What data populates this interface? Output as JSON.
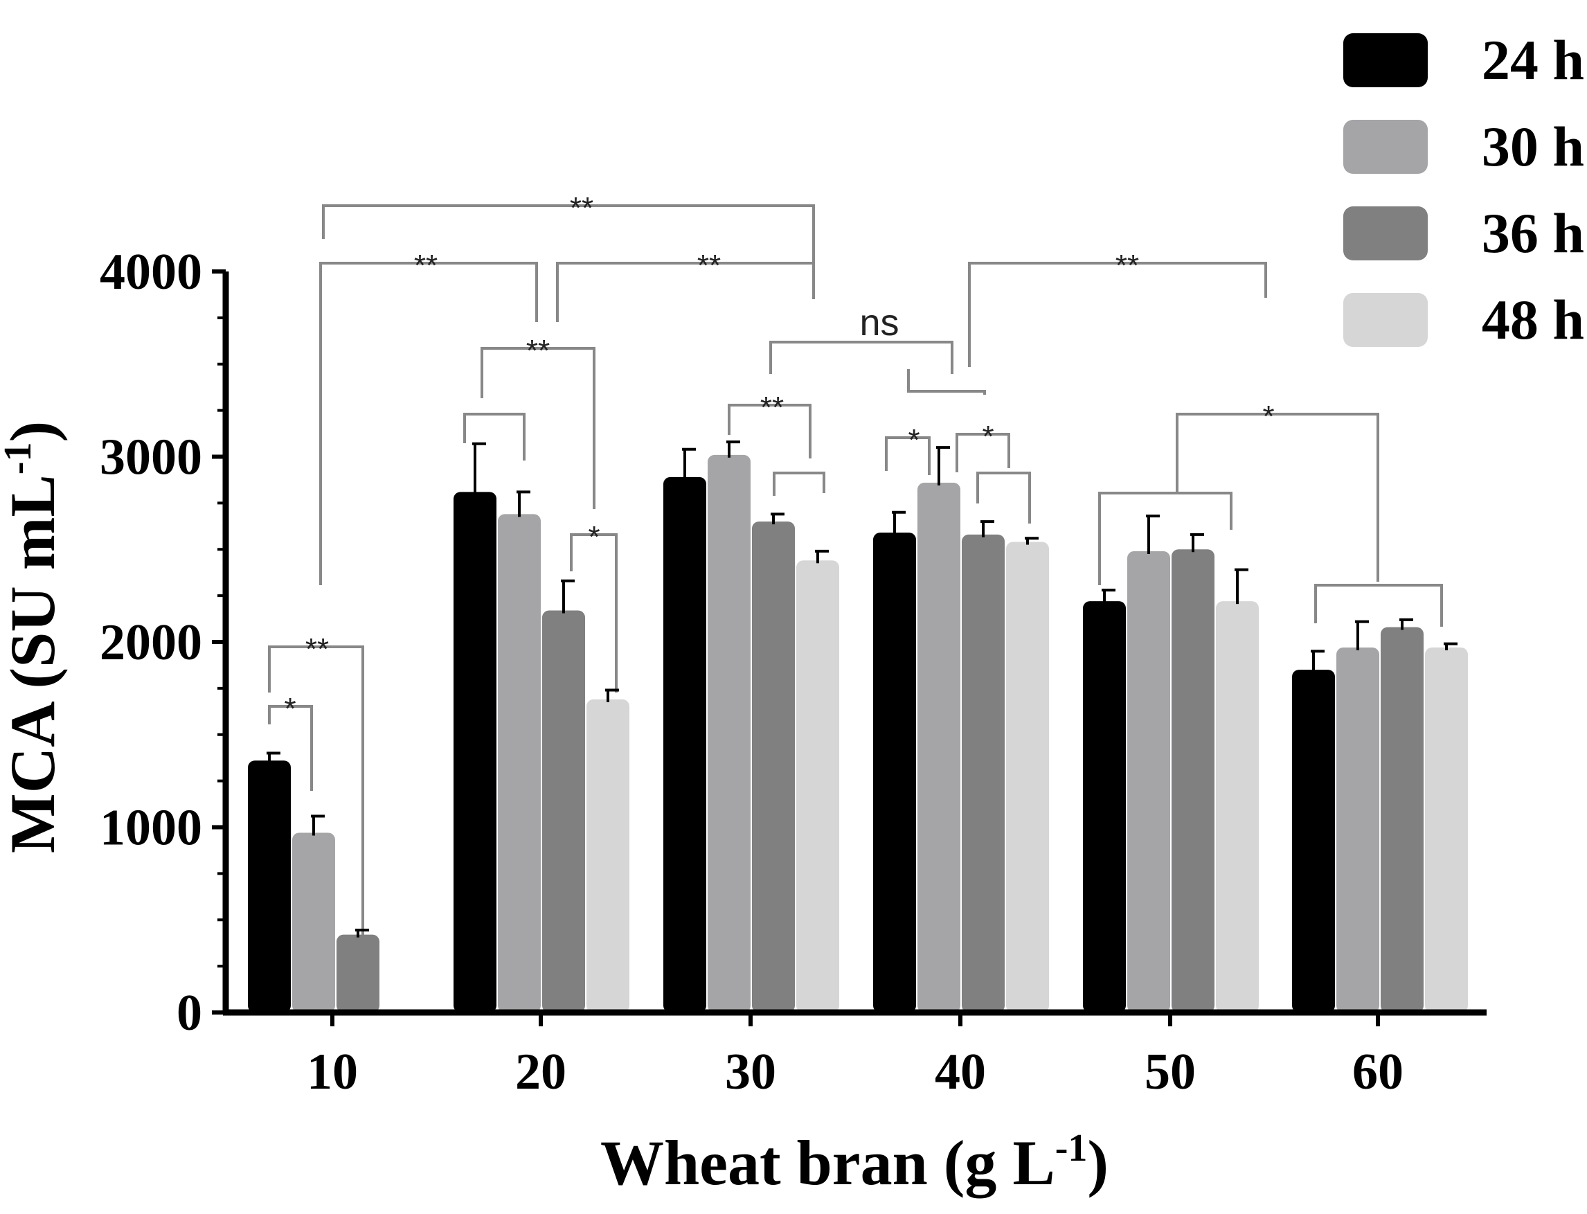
{
  "chart_data": {
    "type": "bar",
    "xlabel": "Wheat bran (g L",
    "xlabel_sup": "-1",
    "xlabel_end": ")",
    "ylabel": "MCA (SU mL",
    "ylabel_sup": "-1",
    "ylabel_end": ")",
    "categories": [
      "10",
      "20",
      "30",
      "40",
      "50",
      "60"
    ],
    "ylim": [
      0,
      4000
    ],
    "yticks": [
      "0",
      "1000",
      "2000",
      "3000",
      "4000"
    ],
    "legend_position": "top-right",
    "series": [
      {
        "name": "24 h",
        "color": "#000000",
        "values": [
          1360,
          2810,
          2890,
          2590,
          2220,
          1850
        ],
        "errors": [
          40,
          260,
          150,
          110,
          60,
          100
        ]
      },
      {
        "name": "30 h",
        "color": "#a5a5a8",
        "values": [
          970,
          2690,
          3010,
          2860,
          2490,
          1970
        ],
        "errors": [
          90,
          120,
          70,
          190,
          190,
          140
        ]
      },
      {
        "name": "36 h",
        "color": "#808080",
        "values": [
          420,
          2170,
          2650,
          2580,
          2500,
          2080
        ],
        "errors": [
          25,
          160,
          40,
          70,
          80,
          40
        ]
      },
      {
        "name": "48 h",
        "color": "#d6d6d6",
        "values": [
          null,
          1690,
          2440,
          2540,
          2220,
          1970
        ],
        "errors": [
          null,
          50,
          50,
          20,
          170,
          20
        ]
      }
    ],
    "significance": [
      {
        "label": "*",
        "from": "10 / 24 h",
        "to": "10 / 30 h"
      },
      {
        "label": "**",
        "from": "10 / 24 h",
        "to": "10 / 36 h"
      },
      {
        "label": "**",
        "from": "10",
        "to": "20"
      },
      {
        "label": "**",
        "from": "10",
        "to": "30"
      },
      {
        "label": "**",
        "from": "20",
        "to": "30"
      },
      {
        "label": "**",
        "from": "20 / 24-30 h",
        "to": "20 / 48 h"
      },
      {
        "label": "*",
        "from": "20 / 36 h",
        "to": "20 / 48 h"
      },
      {
        "label": "**",
        "from": "30 / 30 h",
        "to": "30 / 36-48 h"
      },
      {
        "label": "ns",
        "from": "30",
        "to": "40"
      },
      {
        "label": "**",
        "from": "40",
        "to": "50"
      },
      {
        "label": "*",
        "from": "40 / 24 h",
        "to": "40 / 30 h"
      },
      {
        "label": "*",
        "from": "40 / 30 h",
        "to": "40 / 36-48 h"
      },
      {
        "label": "*",
        "from": "50",
        "to": "60"
      }
    ]
  }
}
